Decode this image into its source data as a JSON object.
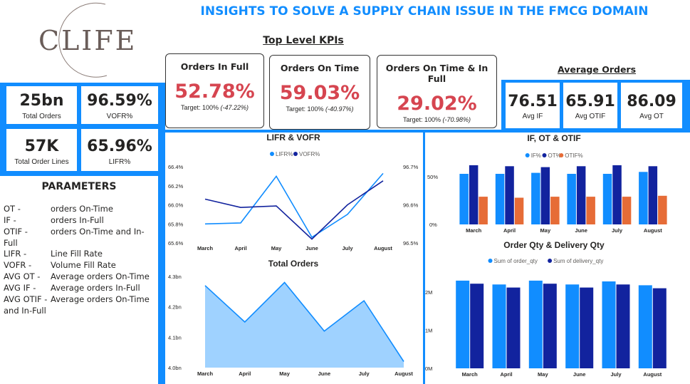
{
  "header": {
    "title": "INSIGHTS TO SOLVE A SUPPLY CHAIN ISSUE IN THE FMCG DOMAIN",
    "logo_text": "CLIFE",
    "top_kpis_heading": "Top Level KPIs",
    "avg_orders_heading": "Average Orders"
  },
  "colors": {
    "accent_blue": "#118dff",
    "dark_blue": "#12239e",
    "orange": "#e66c37",
    "light_area": "#9fd2ff",
    "kpi_red": "#d64550",
    "title_blue": "#118dff"
  },
  "summary_cards": [
    {
      "value": "25bn",
      "label": "Total Orders"
    },
    {
      "value": "96.59%",
      "label": "VOFR%"
    },
    {
      "value": "57K",
      "label": "Total Order Lines"
    },
    {
      "value": "65.96%",
      "label": "LIFR%"
    }
  ],
  "kpi_cards": [
    {
      "title": "Orders In Full",
      "value": "52.78%",
      "target": "Target: 100%",
      "delta": "(-47.22%)"
    },
    {
      "title": "Orders On Time",
      "value": "59.03%",
      "target": "Target: 100%",
      "delta": "(-40.97%)"
    },
    {
      "title": "Orders On Time & In Full",
      "value": "29.02%",
      "target": "Target: 100%",
      "delta": "(-70.98%)"
    }
  ],
  "avg_cards": [
    {
      "value": "76.51",
      "label": "Avg IF"
    },
    {
      "value": "65.91",
      "label": "Avg OTIF"
    },
    {
      "value": "86.09",
      "label": "Avg OT"
    }
  ],
  "parameters": {
    "heading": "PARAMETERS",
    "rows": [
      {
        "key": "OT -",
        "value": "orders On-Time"
      },
      {
        "key": "IF -",
        "value": "orders In-Full"
      },
      {
        "key": "OTIF -",
        "value": "orders On-Time and In-"
      },
      {
        "key": "Full",
        "value": ""
      },
      {
        "key": "LIFR -",
        "value": "Line Fill Rate"
      },
      {
        "key": "VOFR -",
        "value": "Volume Fill Rate"
      },
      {
        "key": "AVG OT -",
        "value": "Average orders On-Time"
      },
      {
        "key": "AVG IF -",
        "value": "Average orders In-Full"
      },
      {
        "key": "AVG OTIF -",
        "value": "Average orders On-Time"
      },
      {
        "key": "and In-Full",
        "value": ""
      }
    ]
  },
  "chart_data": [
    {
      "id": "lifr_vofr",
      "type": "line",
      "title": "LIFR & VOFR",
      "categories": [
        "March",
        "April",
        "May",
        "June",
        "July",
        "August"
      ],
      "series": [
        {
          "name": "LIFR%",
          "axis": "left",
          "values": [
            65.8,
            65.81,
            66.3,
            65.66,
            65.9,
            66.33
          ],
          "color": "#118dff"
        },
        {
          "name": "VOFR%",
          "axis": "right",
          "values": [
            96.615,
            96.593,
            96.597,
            96.51,
            96.6,
            96.663
          ],
          "color": "#12239e"
        }
      ],
      "ylim_left": [
        65.6,
        66.4
      ],
      "yticks_left": [
        "66.4%",
        "66.2%",
        "66.0%",
        "65.8%",
        "65.6%"
      ],
      "ylim_right": [
        96.5,
        96.7
      ],
      "yticks_right": [
        "96.7%",
        "96.6%",
        "96.5%"
      ]
    },
    {
      "id": "if_ot_otif",
      "type": "bar",
      "title": "IF, OT & OTIF",
      "categories": [
        "March",
        "April",
        "May",
        "June",
        "July",
        "August"
      ],
      "series": [
        {
          "name": "IF%",
          "values": [
            53,
            53,
            54,
            53,
            53,
            55
          ],
          "color": "#118dff"
        },
        {
          "name": "OT%",
          "values": [
            62,
            61,
            60,
            61,
            62,
            61
          ],
          "color": "#12239e"
        },
        {
          "name": "OTIF%",
          "values": [
            29,
            28,
            29,
            29,
            29,
            30
          ],
          "color": "#e66c37"
        }
      ],
      "ylim": [
        -10,
        70
      ],
      "yticks": [
        "50%",
        "0%"
      ]
    },
    {
      "id": "total_orders",
      "type": "area",
      "title": "Total Orders",
      "categories": [
        "March",
        "April",
        "May",
        "June",
        "July",
        "August"
      ],
      "values": [
        4.27,
        4.15,
        4.28,
        4.12,
        4.22,
        4.02
      ],
      "ylim": [
        4.0,
        4.3
      ],
      "yticks": [
        "4.3bn",
        "4.2bn",
        "4.1bn",
        "4.0bn"
      ],
      "color": "#9fd2ff"
    },
    {
      "id": "order_delivery_qty",
      "type": "bar",
      "title": "Order Qty & Delivery Qty",
      "categories": [
        "March",
        "April",
        "May",
        "June",
        "July",
        "August"
      ],
      "series": [
        {
          "name": "Sum of order_qty",
          "values": [
            2.3,
            2.2,
            2.3,
            2.2,
            2.28,
            2.18
          ],
          "color": "#118dff"
        },
        {
          "name": "Sum of delivery_qty",
          "values": [
            2.22,
            2.12,
            2.22,
            2.12,
            2.2,
            2.1
          ],
          "color": "#12239e"
        }
      ],
      "ylim": [
        0,
        2.5
      ],
      "yticks": [
        "2M",
        "1M",
        "0M"
      ]
    }
  ]
}
